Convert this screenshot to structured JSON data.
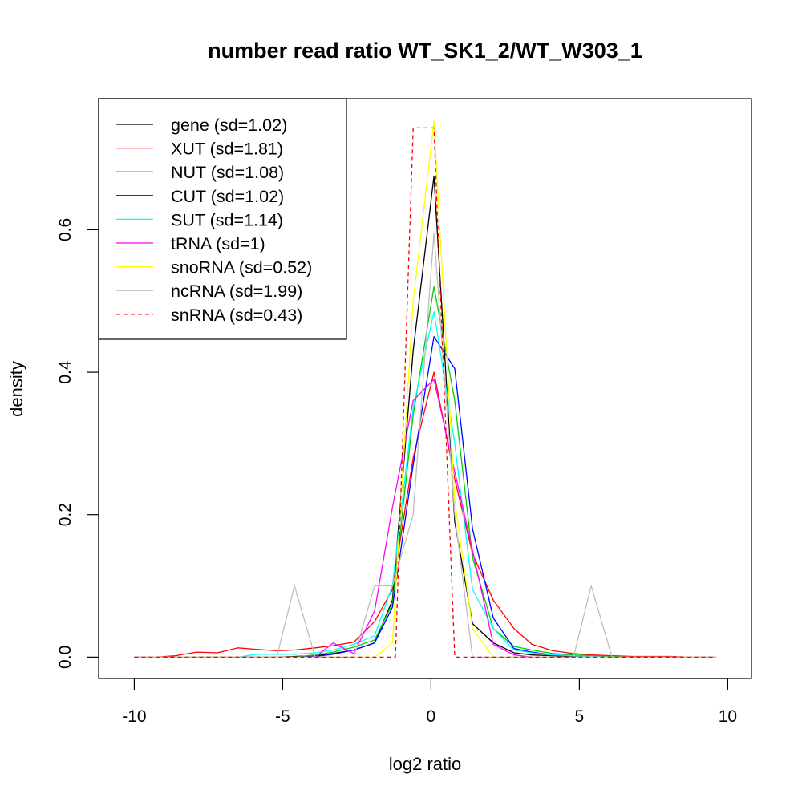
{
  "chart_data": {
    "type": "line",
    "title": "number read ratio WT_SK1_2/WT_W303_1",
    "xlabel": "log2 ratio",
    "ylabel": "density",
    "xlim": [
      -11.2,
      10.8
    ],
    "ylim": [
      -0.03,
      0.784
    ],
    "x_ticks": [
      -10,
      -5,
      0,
      5,
      10
    ],
    "x_tick_labels": [
      "-10",
      "-5",
      "0",
      "5",
      "10"
    ],
    "y_ticks": [
      0.0,
      0.2,
      0.4,
      0.6
    ],
    "y_tick_labels": [
      "0.0",
      "0.2",
      "0.4",
      "0.6"
    ],
    "grid": false,
    "legend_position": "top-left",
    "series": [
      {
        "name": "gene (sd=1.02)",
        "color": "#000000",
        "dash": "solid",
        "x": [
          -10,
          -9.3,
          -8.6,
          -7.9,
          -7.2,
          -6.5,
          -5.9,
          -5.2,
          -4.6,
          -3.9,
          -3.3,
          -2.6,
          -1.9,
          -1.3,
          -0.6,
          0.1,
          0.8,
          1.4,
          2.1,
          2.8,
          3.4,
          4.1,
          4.8,
          5.4,
          6.1,
          6.8,
          7.4,
          8.1,
          8.8,
          9.6
        ],
        "y": [
          0,
          0,
          0,
          0,
          0,
          0,
          0,
          0,
          0.001,
          0.002,
          0.005,
          0.01,
          0.02,
          0.08,
          0.43,
          0.675,
          0.19,
          0.047,
          0.02,
          0.006,
          0.003,
          0.002,
          0.001,
          0,
          0,
          0,
          0,
          0,
          0,
          0
        ]
      },
      {
        "name": "XUT (sd=1.81)",
        "color": "#ff0000",
        "dash": "solid",
        "x": [
          -10,
          -9.3,
          -8.6,
          -7.9,
          -7.2,
          -6.5,
          -5.9,
          -5.2,
          -4.6,
          -3.9,
          -3.3,
          -2.6,
          -1.9,
          -1.3,
          -0.6,
          0.1,
          0.8,
          1.4,
          2.1,
          2.8,
          3.4,
          4.1,
          4.8,
          5.4,
          6.1,
          6.8,
          7.4,
          8.1,
          8.8,
          9.6
        ],
        "y": [
          0,
          0,
          0.002,
          0.007,
          0.006,
          0.013,
          0.011,
          0.009,
          0.01,
          0.013,
          0.016,
          0.021,
          0.05,
          0.095,
          0.28,
          0.4,
          0.25,
          0.145,
          0.08,
          0.04,
          0.018,
          0.009,
          0.005,
          0.003,
          0.002,
          0.001,
          0.001,
          0.001,
          0,
          0
        ]
      },
      {
        "name": "NUT (sd=1.08)",
        "color": "#00cd00",
        "dash": "solid",
        "x": [
          -10,
          -9.3,
          -8.6,
          -7.9,
          -7.2,
          -6.5,
          -5.9,
          -5.2,
          -4.6,
          -3.9,
          -3.3,
          -2.6,
          -1.9,
          -1.3,
          -0.6,
          0.1,
          0.8,
          1.4,
          2.1,
          2.8,
          3.4,
          4.1,
          4.8,
          5.4,
          6.1,
          6.8,
          7.4,
          8.1,
          8.8,
          9.6
        ],
        "y": [
          0,
          0,
          0,
          0,
          0,
          0,
          0,
          0,
          0,
          0.003,
          0.007,
          0.014,
          0.024,
          0.075,
          0.34,
          0.52,
          0.36,
          0.14,
          0.04,
          0.015,
          0.01,
          0.005,
          0.003,
          0.002,
          0.001,
          0,
          0,
          0,
          0,
          0
        ]
      },
      {
        "name": "CUT (sd=1.02)",
        "color": "#0000ff",
        "dash": "solid",
        "x": [
          -10,
          -9.3,
          -8.6,
          -7.9,
          -7.2,
          -6.5,
          -5.9,
          -5.2,
          -4.6,
          -3.9,
          -3.3,
          -2.6,
          -1.9,
          -1.3,
          -0.6,
          0.1,
          0.8,
          1.4,
          2.1,
          2.8,
          3.4,
          4.1,
          4.8,
          5.4,
          6.1,
          6.8,
          7.4,
          8.1,
          8.8,
          9.6
        ],
        "y": [
          0,
          0,
          0,
          0,
          0,
          0,
          0,
          0,
          0,
          0.001,
          0.004,
          0.01,
          0.02,
          0.07,
          0.27,
          0.45,
          0.405,
          0.18,
          0.055,
          0.012,
          0.007,
          0.003,
          0.002,
          0.001,
          0,
          0,
          0,
          0,
          0,
          0
        ]
      },
      {
        "name": "SUT (sd=1.14)",
        "color": "#00ffff",
        "dash": "solid",
        "x": [
          -10,
          -9.3,
          -8.6,
          -7.9,
          -7.2,
          -6.5,
          -5.9,
          -5.2,
          -4.6,
          -3.9,
          -3.3,
          -2.6,
          -1.9,
          -1.3,
          -0.6,
          0.1,
          0.8,
          1.4,
          2.1,
          2.8,
          3.4,
          4.1,
          4.8,
          5.4,
          6.1,
          6.8,
          7.4,
          8.1,
          8.8,
          9.6
        ],
        "y": [
          0,
          0,
          0,
          0,
          0,
          0,
          0.004,
          0.004,
          0.004,
          0.006,
          0.01,
          0.018,
          0.03,
          0.1,
          0.35,
          0.485,
          0.3,
          0.095,
          0.04,
          0.01,
          0.006,
          0.003,
          0.002,
          0.001,
          0,
          0,
          0,
          0,
          0,
          0
        ]
      },
      {
        "name": "tRNA (sd=1)",
        "color": "#ff00ff",
        "dash": "solid",
        "x": [
          -10,
          -9.3,
          -8.6,
          -7.9,
          -7.2,
          -6.5,
          -5.9,
          -5.2,
          -4.6,
          -3.9,
          -3.3,
          -2.6,
          -1.9,
          -1.3,
          -0.6,
          0.1,
          0.8,
          1.4,
          2.1,
          2.8,
          3.4,
          4.1,
          4.8,
          5.4,
          6.1,
          6.8,
          7.4,
          8.1,
          8.8,
          9.6
        ],
        "y": [
          0,
          0,
          0,
          0,
          0,
          0,
          0,
          0,
          0,
          0,
          0.02,
          0.005,
          0.065,
          0.21,
          0.36,
          0.39,
          0.26,
          0.15,
          0.018,
          0.003,
          0,
          0,
          0,
          0,
          0,
          0,
          0,
          0,
          0,
          0
        ]
      },
      {
        "name": "snoRNA (sd=0.52)",
        "color": "#ffff00",
        "dash": "solid",
        "x": [
          -10,
          -9.3,
          -8.6,
          -7.9,
          -7.2,
          -6.5,
          -5.9,
          -5.2,
          -4.6,
          -3.9,
          -3.3,
          -2.6,
          -1.9,
          -1.3,
          -0.6,
          0.1,
          0.8,
          1.4,
          2.1,
          2.8,
          3.4,
          4.1,
          4.8,
          5.4,
          6.1,
          6.8,
          7.4,
          8.1,
          8.8,
          9.6
        ],
        "y": [
          0,
          0,
          0,
          0,
          0,
          0,
          0,
          0,
          0,
          0,
          0,
          0,
          0,
          0.02,
          0.5,
          0.752,
          0.22,
          0.04,
          0,
          0,
          0,
          0,
          0,
          0,
          0,
          0,
          0,
          0,
          0,
          0
        ]
      },
      {
        "name": "ncRNA (sd=1.99)",
        "color": "#bebebe",
        "dash": "solid",
        "x": [
          -10,
          -9.3,
          -8.6,
          -7.9,
          -7.2,
          -6.5,
          -5.9,
          -5.2,
          -4.6,
          -3.9,
          -3.3,
          -2.6,
          -1.9,
          -1.3,
          -0.6,
          0.1,
          0.8,
          1.4,
          2.1,
          2.8,
          3.4,
          4.1,
          4.8,
          5.4,
          6.1,
          6.8,
          7.4,
          8.1,
          8.8,
          9.6
        ],
        "y": [
          0,
          0,
          0,
          0,
          0,
          0,
          0,
          0,
          0.1,
          0,
          0,
          0,
          0.1,
          0.1,
          0.2,
          0.595,
          0.2,
          0,
          0,
          0,
          0,
          0,
          0,
          0.1,
          0,
          0,
          0,
          0,
          0,
          0
        ]
      },
      {
        "name": "snRNA (sd=0.43)",
        "color": "#ff0000",
        "dash": "dashed",
        "x": [
          -10,
          -1.2,
          -0.6,
          0.1,
          0.8,
          9.6
        ],
        "y": [
          0,
          0,
          0.743,
          0.743,
          0,
          0
        ]
      }
    ]
  }
}
